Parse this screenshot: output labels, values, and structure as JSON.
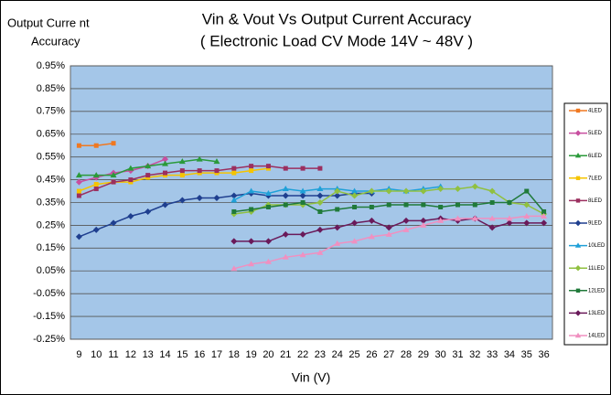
{
  "chart_data": {
    "type": "line",
    "title": "Vin & Vout Vs Output Current Accuracy",
    "subtitle": "( Electronic Load CV Mode 14V ~ 48V )",
    "y_label": [
      "Output Curre nt",
      "Accuracy"
    ],
    "x_label": "Vin (V)",
    "categories": [
      "9",
      "10",
      "11",
      "12",
      "13",
      "14",
      "15",
      "16",
      "17",
      "18",
      "19",
      "20",
      "21",
      "22",
      "23",
      "24",
      "25",
      "26",
      "27",
      "28",
      "29",
      "30",
      "31",
      "32",
      "33",
      "34",
      "35",
      "36"
    ],
    "ylim": [
      -0.25,
      0.95
    ],
    "yticks": [
      {
        "value": -0.25,
        "label": "-0.25%"
      },
      {
        "value": -0.15,
        "label": "-0.15%"
      },
      {
        "value": -0.05,
        "label": "-0.05%"
      },
      {
        "value": 0.05,
        "label": "0.05%"
      },
      {
        "value": 0.15,
        "label": "0.15%"
      },
      {
        "value": 0.25,
        "label": "0.25%"
      },
      {
        "value": 0.35,
        "label": "0.35%"
      },
      {
        "value": 0.45,
        "label": "0.45%"
      },
      {
        "value": 0.55,
        "label": "0.55%"
      },
      {
        "value": 0.65,
        "label": "0.65%"
      },
      {
        "value": 0.75,
        "label": "0.75%"
      },
      {
        "value": 0.85,
        "label": "0.85%"
      },
      {
        "value": 0.95,
        "label": "0.95%"
      }
    ],
    "grid": true,
    "legend": "right",
    "series": [
      {
        "name": "4LED",
        "color": "#f07820",
        "marker": "square",
        "values": [
          0.6,
          0.6,
          0.61,
          null,
          null,
          null,
          null,
          null,
          null,
          null,
          null,
          null,
          null,
          null,
          null,
          null,
          null,
          null,
          null,
          null,
          null,
          null,
          null,
          null,
          null,
          null,
          null,
          null
        ]
      },
      {
        "name": "5LED",
        "color": "#c84fa0",
        "marker": "diamond",
        "values": [
          0.44,
          0.46,
          0.48,
          0.49,
          0.51,
          0.54,
          null,
          null,
          null,
          null,
          null,
          null,
          null,
          null,
          null,
          null,
          null,
          null,
          null,
          null,
          null,
          null,
          null,
          null,
          null,
          null,
          null,
          null
        ]
      },
      {
        "name": "6LED",
        "color": "#2a9a3a",
        "marker": "triangle",
        "values": [
          0.47,
          0.47,
          0.47,
          0.5,
          0.51,
          0.52,
          0.53,
          0.54,
          0.53,
          null,
          null,
          null,
          null,
          null,
          null,
          null,
          null,
          null,
          null,
          null,
          null,
          null,
          null,
          null,
          null,
          null,
          null,
          null
        ]
      },
      {
        "name": "7LED",
        "color": "#f5c400",
        "marker": "square",
        "values": [
          0.4,
          0.43,
          0.44,
          0.44,
          0.46,
          0.47,
          0.47,
          0.48,
          0.48,
          0.48,
          0.49,
          0.5,
          null,
          null,
          null,
          null,
          null,
          null,
          null,
          null,
          null,
          null,
          null,
          null,
          null,
          null,
          null,
          null
        ]
      },
      {
        "name": "8LED",
        "color": "#9b2f5f",
        "marker": "square",
        "values": [
          0.38,
          0.41,
          0.44,
          0.45,
          0.47,
          0.48,
          0.49,
          0.49,
          0.49,
          0.5,
          0.51,
          0.51,
          0.5,
          0.5,
          0.5,
          null,
          null,
          null,
          null,
          null,
          null,
          null,
          null,
          null,
          null,
          null,
          null,
          null
        ]
      },
      {
        "name": "9LED",
        "color": "#1f3f8f",
        "marker": "diamond",
        "values": [
          0.2,
          0.23,
          0.26,
          0.29,
          0.31,
          0.34,
          0.36,
          0.37,
          0.37,
          0.38,
          0.39,
          0.38,
          0.38,
          0.38,
          0.38,
          0.38,
          0.39,
          0.39,
          null,
          null,
          null,
          null,
          null,
          null,
          null,
          null,
          null,
          null
        ]
      },
      {
        "name": "10LED",
        "color": "#1fa0d8",
        "marker": "triangle",
        "values": [
          null,
          null,
          null,
          null,
          null,
          null,
          null,
          null,
          null,
          0.36,
          0.4,
          0.39,
          0.41,
          0.4,
          0.41,
          0.41,
          0.4,
          0.4,
          0.41,
          0.4,
          0.41,
          0.42,
          null,
          null,
          null,
          null,
          null,
          null
        ]
      },
      {
        "name": "11LED",
        "color": "#90c040",
        "marker": "diamond",
        "values": [
          null,
          null,
          null,
          null,
          null,
          null,
          null,
          null,
          null,
          0.3,
          0.31,
          0.34,
          0.34,
          0.34,
          0.35,
          0.4,
          0.38,
          0.4,
          0.4,
          0.4,
          0.4,
          0.41,
          0.41,
          0.42,
          0.4,
          0.35,
          0.34,
          0.3
        ]
      },
      {
        "name": "12LED",
        "color": "#207a3a",
        "marker": "square",
        "values": [
          null,
          null,
          null,
          null,
          null,
          null,
          null,
          null,
          null,
          0.31,
          0.32,
          0.33,
          0.34,
          0.35,
          0.31,
          0.32,
          0.33,
          0.33,
          0.34,
          0.34,
          0.34,
          0.33,
          0.34,
          0.34,
          0.35,
          0.35,
          0.4,
          0.31
        ]
      },
      {
        "name": "13LED",
        "color": "#6a1a5a",
        "marker": "diamond",
        "values": [
          null,
          null,
          null,
          null,
          null,
          null,
          null,
          null,
          null,
          0.18,
          0.18,
          0.18,
          0.21,
          0.21,
          0.23,
          0.24,
          0.26,
          0.27,
          0.24,
          0.27,
          0.27,
          0.28,
          0.27,
          0.28,
          0.24,
          0.26,
          0.26,
          0.26
        ]
      },
      {
        "name": "14LED",
        "color": "#f090c0",
        "marker": "triangle",
        "values": [
          null,
          null,
          null,
          null,
          null,
          null,
          null,
          null,
          null,
          0.06,
          0.08,
          0.09,
          0.11,
          0.12,
          0.13,
          0.17,
          0.18,
          0.2,
          0.21,
          0.23,
          0.25,
          0.27,
          0.28,
          0.28,
          0.28,
          0.28,
          0.29,
          0.29
        ]
      }
    ]
  }
}
